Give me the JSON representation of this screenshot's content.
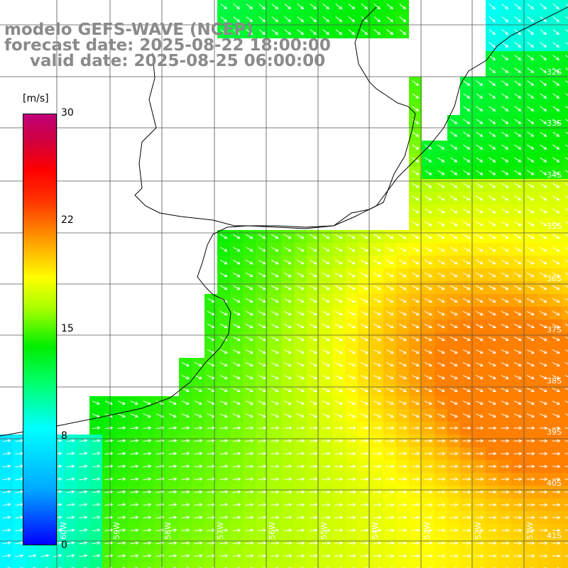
{
  "title": {
    "line1": "modelo GEFS-WAVE (NCEP)",
    "line2": "forecast date: 2025-08-22 18:00:00",
    "line3": "valid date: 2025-08-25 06:00:00"
  },
  "colorbar": {
    "unit": "[m/s]",
    "ticks": [
      {
        "label": "30",
        "value": 30
      },
      {
        "label": "22",
        "value": 22
      },
      {
        "label": "15",
        "value": 15
      },
      {
        "label": "8",
        "value": 8
      },
      {
        "label": "0",
        "value": 0
      }
    ],
    "range": [
      0,
      30
    ]
  },
  "lat_labels": [
    "32S",
    "33S",
    "34S",
    "35S",
    "36S",
    "37S",
    "38S",
    "39S",
    "40S",
    "41S"
  ],
  "lon_labels": [
    "60W",
    "59W",
    "58W",
    "57W",
    "56W",
    "55W",
    "54W",
    "53W",
    "52W",
    "51W"
  ],
  "colors": {
    "land": "#ffffff",
    "grid": "#555555",
    "coast": "#000000",
    "arrow": "#ffffff",
    "title": "#8a8a8a"
  }
}
